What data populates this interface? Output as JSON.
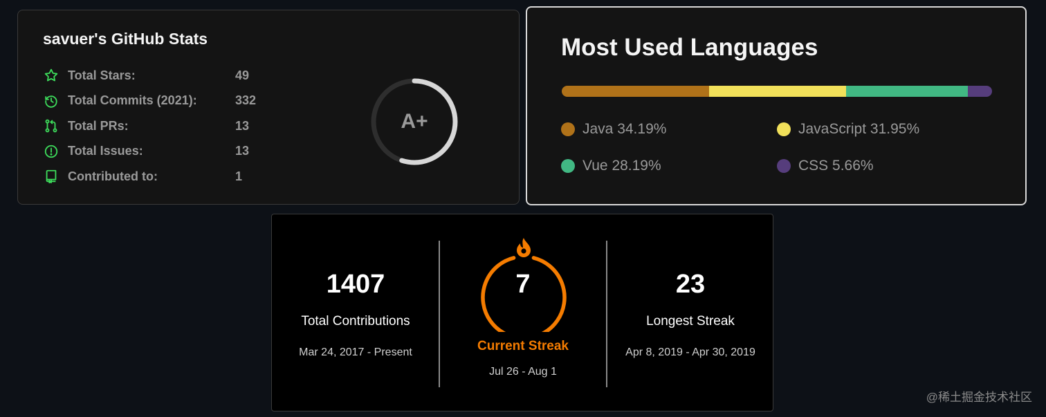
{
  "stats": {
    "title": "savuer's GitHub Stats",
    "rows": [
      {
        "icon": "star-icon",
        "label": "Total Stars:",
        "value": "49"
      },
      {
        "icon": "history-icon",
        "label": "Total Commits (2021):",
        "value": "332"
      },
      {
        "icon": "pull-request-icon",
        "label": "Total PRs:",
        "value": "13"
      },
      {
        "icon": "issue-icon",
        "label": "Total Issues:",
        "value": "13"
      },
      {
        "icon": "repo-icon",
        "label": "Contributed to:",
        "value": "1"
      }
    ],
    "rank": "A+",
    "icon_color": "#3ddc5b",
    "rank_progress": 0.55
  },
  "languages": {
    "title": "Most Used Languages",
    "items": [
      {
        "name": "Java",
        "percent": "34.19%",
        "value": 34.19,
        "color": "#b07219"
      },
      {
        "name": "JavaScript",
        "percent": "31.95%",
        "value": 31.95,
        "color": "#f1e05a"
      },
      {
        "name": "Vue",
        "percent": "28.19%",
        "value": 28.19,
        "color": "#41b883"
      },
      {
        "name": "CSS",
        "percent": "5.66%",
        "value": 5.66,
        "color": "#563d7c"
      }
    ]
  },
  "streak": {
    "total": {
      "value": "1407",
      "label": "Total Contributions",
      "range": "Mar 24, 2017 - Present"
    },
    "current": {
      "value": "7",
      "label": "Current Streak",
      "range": "Jul 26 - Aug 1"
    },
    "longest": {
      "value": "23",
      "label": "Longest Streak",
      "range": "Apr 8, 2019 - Apr 30, 2019"
    },
    "accent_color": "#f57c00"
  },
  "watermark": "@稀土掘金技术社区"
}
